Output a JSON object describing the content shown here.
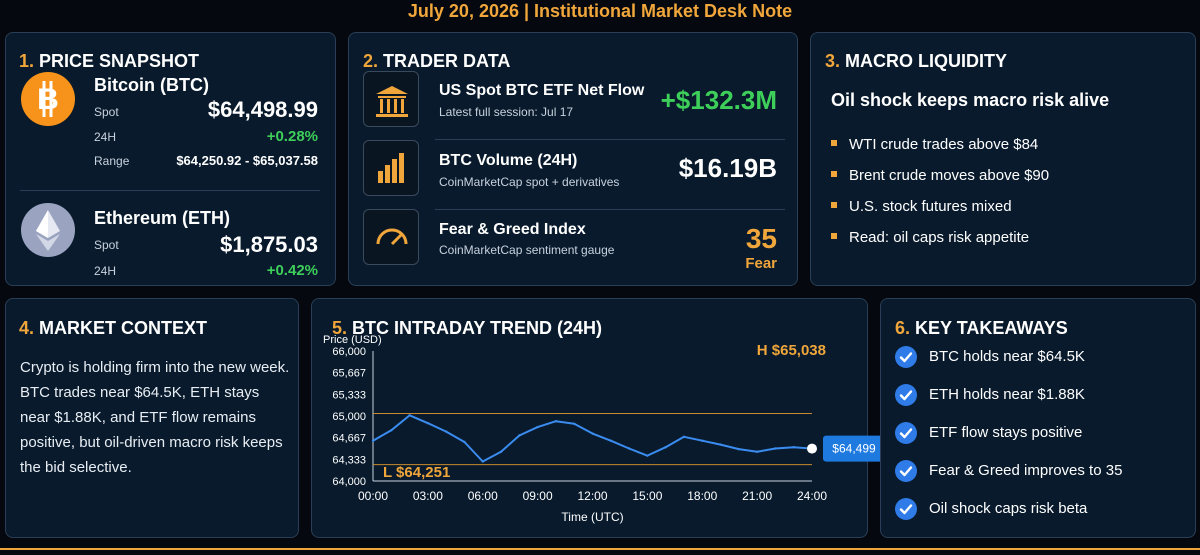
{
  "header": {
    "title": "July 20, 2026  |  Institutional Market Desk Note"
  },
  "colors": {
    "accent": "#f0a63a",
    "positive": "#3ecf5a",
    "line": "#3b8cf0",
    "panel": "#081a2c"
  },
  "price_snapshot": {
    "num": "1.",
    "title": "PRICE SNAPSHOT",
    "btc": {
      "icon": "bitcoin-icon",
      "name": "Bitcoin (BTC)",
      "spot_label": "Spot",
      "spot": "$64,498.99",
      "change_label": "24H",
      "change": "+0.28%",
      "range_label": "Range",
      "range": "$64,250.92 - $65,037.58"
    },
    "eth": {
      "icon": "ethereum-icon",
      "name": "Ethereum (ETH)",
      "spot_label": "Spot",
      "spot": "$1,875.03",
      "change_label": "24H",
      "change": "+0.42%"
    }
  },
  "trader_data": {
    "num": "2.",
    "title": "TRADER DATA",
    "rows": [
      {
        "icon": "bank-icon",
        "title": "US Spot BTC ETF Net Flow",
        "sub": "Latest full session: Jul 17",
        "value": "+$132.3M"
      },
      {
        "icon": "bar-chart-icon",
        "title": "BTC Volume (24H)",
        "sub": "CoinMarketCap spot + derivatives",
        "value": "$16.19B"
      },
      {
        "icon": "gauge-icon",
        "title": "Fear & Greed Index",
        "sub": "CoinMarketCap sentiment gauge",
        "value": "35",
        "value_sub": "Fear"
      }
    ]
  },
  "macro": {
    "num": "3.",
    "title": "MACRO LIQUIDITY",
    "headline": "Oil shock keeps macro risk alive",
    "bullets": [
      "WTI crude trades above $84",
      "Brent crude moves above $90",
      "U.S. stock futures mixed",
      "Read: oil caps risk appetite"
    ]
  },
  "context": {
    "num": "4.",
    "title": "MARKET CONTEXT",
    "body": "Crypto is holding firm into the new week. BTC trades near $64.5K, ETH stays near $1.88K, and ETF flow remains positive, but oil-driven macro risk keeps the bid selective."
  },
  "trend": {
    "num": "5.",
    "title": "BTC INTRADAY TREND (24H)"
  },
  "takeaways": {
    "num": "6.",
    "title": "KEY TAKEAWAYS",
    "items": [
      "BTC holds near $64.5K",
      "ETH holds near $1.88K",
      "ETF flow stays positive",
      "Fear & Greed improves to 35",
      "Oil shock caps risk beta"
    ]
  },
  "chart_data": {
    "type": "line",
    "title": "",
    "xlabel": "Time (UTC)",
    "ylabel": "Price (USD)",
    "x": [
      0,
      1,
      2,
      3,
      4,
      5,
      6,
      7,
      8,
      9,
      10,
      11,
      12,
      13,
      14,
      15,
      16,
      17,
      18,
      19,
      20,
      21,
      22,
      23,
      24
    ],
    "xticks": [
      "00:00",
      "03:00",
      "06:00",
      "09:00",
      "12:00",
      "15:00",
      "18:00",
      "21:00",
      "24:00"
    ],
    "xtick_values": [
      0,
      3,
      6,
      9,
      12,
      15,
      18,
      21,
      24
    ],
    "yticks": [
      "64,000",
      "64,333",
      "64,667",
      "65,000",
      "65,333",
      "65,667",
      "66,000"
    ],
    "ytick_values": [
      64000,
      64333,
      64667,
      65000,
      65333,
      65667,
      66000
    ],
    "ylim": [
      64000,
      66000
    ],
    "xlim": [
      0,
      24
    ],
    "series": [
      {
        "values": [
          64620,
          64780,
          65010,
          64890,
          64760,
          64600,
          64300,
          64450,
          64700,
          64830,
          64920,
          64880,
          64730,
          64620,
          64500,
          64390,
          64520,
          64680,
          64620,
          64560,
          64490,
          64450,
          64500,
          64520,
          64499
        ]
      }
    ],
    "high_line": 65038,
    "low_line": 64251,
    "high_label": "H $65,038",
    "low_label": "L $64,251",
    "last_label": "$64,499",
    "grid": false,
    "legend": "none"
  }
}
